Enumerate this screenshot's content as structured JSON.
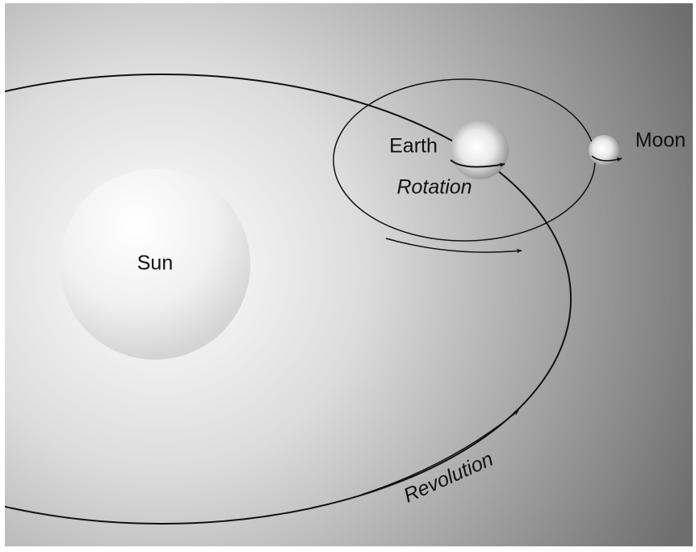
{
  "labels": {
    "sun": "Sun",
    "earth": "Earth",
    "moon": "Moon",
    "rotation": "Rotation",
    "revolution": "Revolution"
  }
}
